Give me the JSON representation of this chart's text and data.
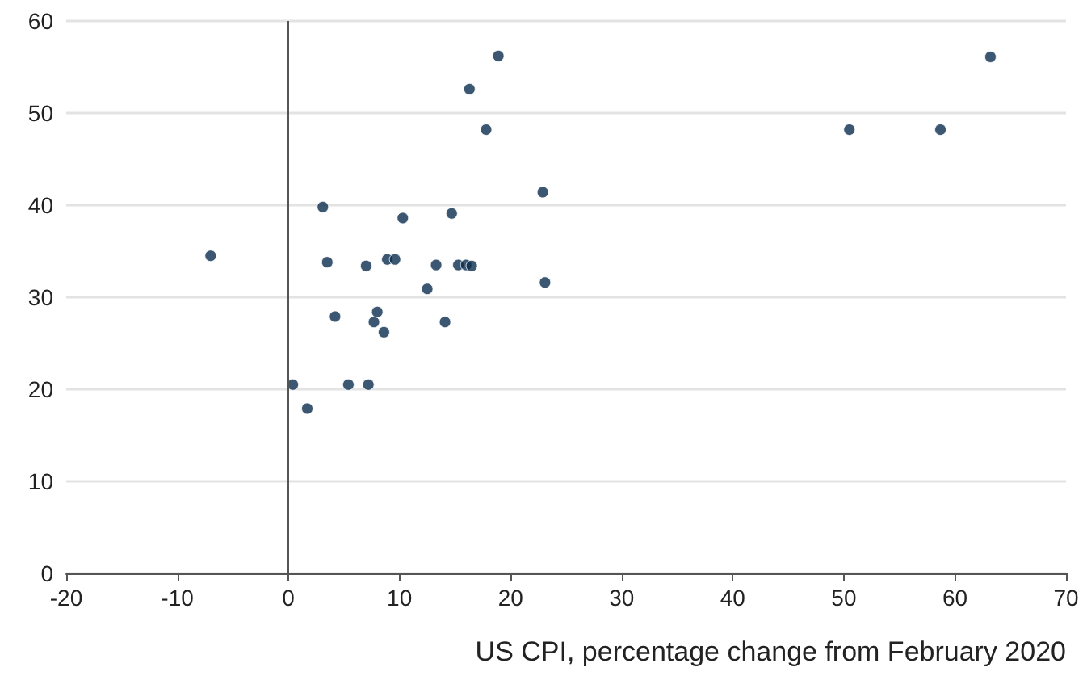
{
  "chart_data": {
    "type": "scatter",
    "xlabel": "US CPI, percentage change from February 2020",
    "x": [
      -7.0,
      0.4,
      1.7,
      3.1,
      3.5,
      4.2,
      5.4,
      7.0,
      7.2,
      7.7,
      8.0,
      8.6,
      8.9,
      9.6,
      10.3,
      12.5,
      13.3,
      14.1,
      14.7,
      15.3,
      16.0,
      16.3,
      16.5,
      17.8,
      18.9,
      22.9,
      23.1,
      50.5,
      58.7,
      63.2
    ],
    "series": [
      {
        "color": "#0b2d4f",
        "values": [
          34.5,
          20.5,
          17.9,
          39.8,
          33.8,
          27.9,
          20.5,
          33.4,
          20.5,
          27.3,
          28.4,
          26.2,
          34.1,
          34.1,
          38.6,
          30.9,
          33.5,
          27.3,
          39.1,
          33.5,
          33.5,
          52.6,
          33.4,
          48.2,
          56.2,
          41.4,
          31.6,
          48.2,
          48.2,
          56.1
        ]
      }
    ],
    "xlim": [
      -20,
      70
    ],
    "xticks": [
      -20,
      -10,
      0,
      10,
      20,
      30,
      40,
      50,
      60,
      70
    ],
    "ylim": [
      0,
      60
    ],
    "yticks": [
      0,
      10,
      20,
      30,
      40,
      50,
      60
    ],
    "ref_lines": [
      {
        "axis": "x",
        "value": 0,
        "color": "#555555"
      }
    ],
    "grid": "y",
    "marker": "circle"
  }
}
